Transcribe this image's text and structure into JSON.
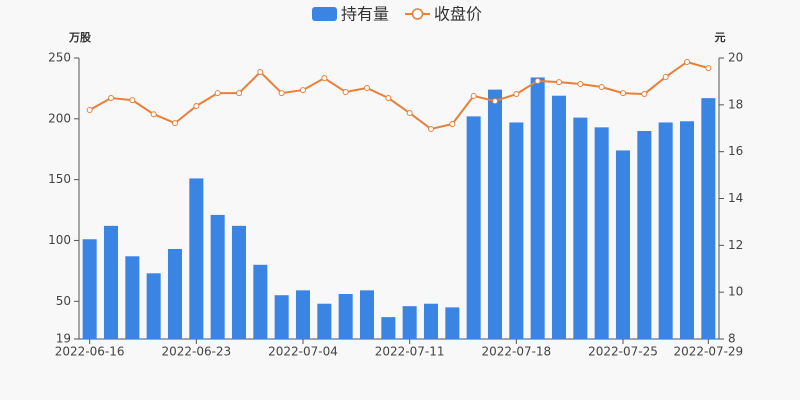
{
  "chart_data": {
    "type": "bar",
    "y_label": "万股",
    "y2_label": "元",
    "categories": [
      "2022-06-16",
      null,
      null,
      null,
      null,
      "2022-06-23",
      null,
      null,
      null,
      null,
      "2022-07-04",
      null,
      null,
      null,
      null,
      "2022-07-11",
      null,
      null,
      null,
      null,
      "2022-07-18",
      null,
      null,
      null,
      null,
      "2022-07-25",
      null,
      null,
      null,
      "2022-07-29"
    ],
    "series": [
      {
        "name": "持有量",
        "type": "bar",
        "color": "#3a84e3",
        "values": [
          101,
          112,
          87,
          73,
          93,
          151,
          121,
          112,
          80,
          55,
          59,
          48,
          56,
          59,
          37,
          46,
          48,
          45,
          202,
          224,
          197,
          234,
          219,
          201,
          193,
          174,
          190,
          197,
          198,
          217
        ]
      },
      {
        "name": "收盘价",
        "type": "line",
        "axis": "y2",
        "color": "#e8803a",
        "values": [
          17.78,
          18.29,
          18.2,
          17.6,
          17.22,
          17.95,
          18.5,
          18.5,
          19.4,
          18.5,
          18.63,
          19.14,
          18.55,
          18.72,
          18.29,
          17.65,
          16.97,
          17.18,
          18.38,
          18.16,
          18.46,
          19.02,
          18.97,
          18.89,
          18.76,
          18.5,
          18.46,
          19.19,
          19.83,
          19.57
        ]
      }
    ],
    "ylim": [
      19,
      250
    ],
    "yticks": [
      19,
      50,
      100,
      150,
      200,
      250
    ],
    "y2lim": [
      8,
      20
    ],
    "y2ticks": [
      8,
      10,
      12,
      14,
      16,
      18,
      20
    ],
    "grid": false,
    "legend": "top"
  }
}
